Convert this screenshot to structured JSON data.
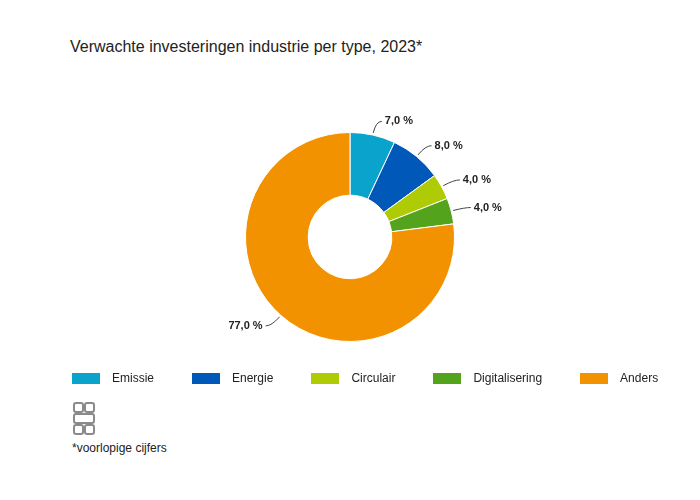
{
  "chart_data": {
    "type": "doughnut",
    "title": "Verwachte investeringen industrie per type, 2023*",
    "categories": [
      "Emissie",
      "Energie",
      "Circulair",
      "Digitalisering",
      "Anders"
    ],
    "values": [
      7.0,
      8.0,
      4.0,
      4.0,
      77.0
    ],
    "value_labels": [
      "7,0 %",
      "8,0 %",
      "4,0 %",
      "4,0 %",
      "77,0 %"
    ],
    "colors": [
      "#0aa3cc",
      "#0058b8",
      "#afcb05",
      "#53a31d",
      "#f39200"
    ],
    "data_labels": true,
    "legend": "bottom",
    "annotations": [
      "*voorlopige cijfers"
    ]
  }
}
